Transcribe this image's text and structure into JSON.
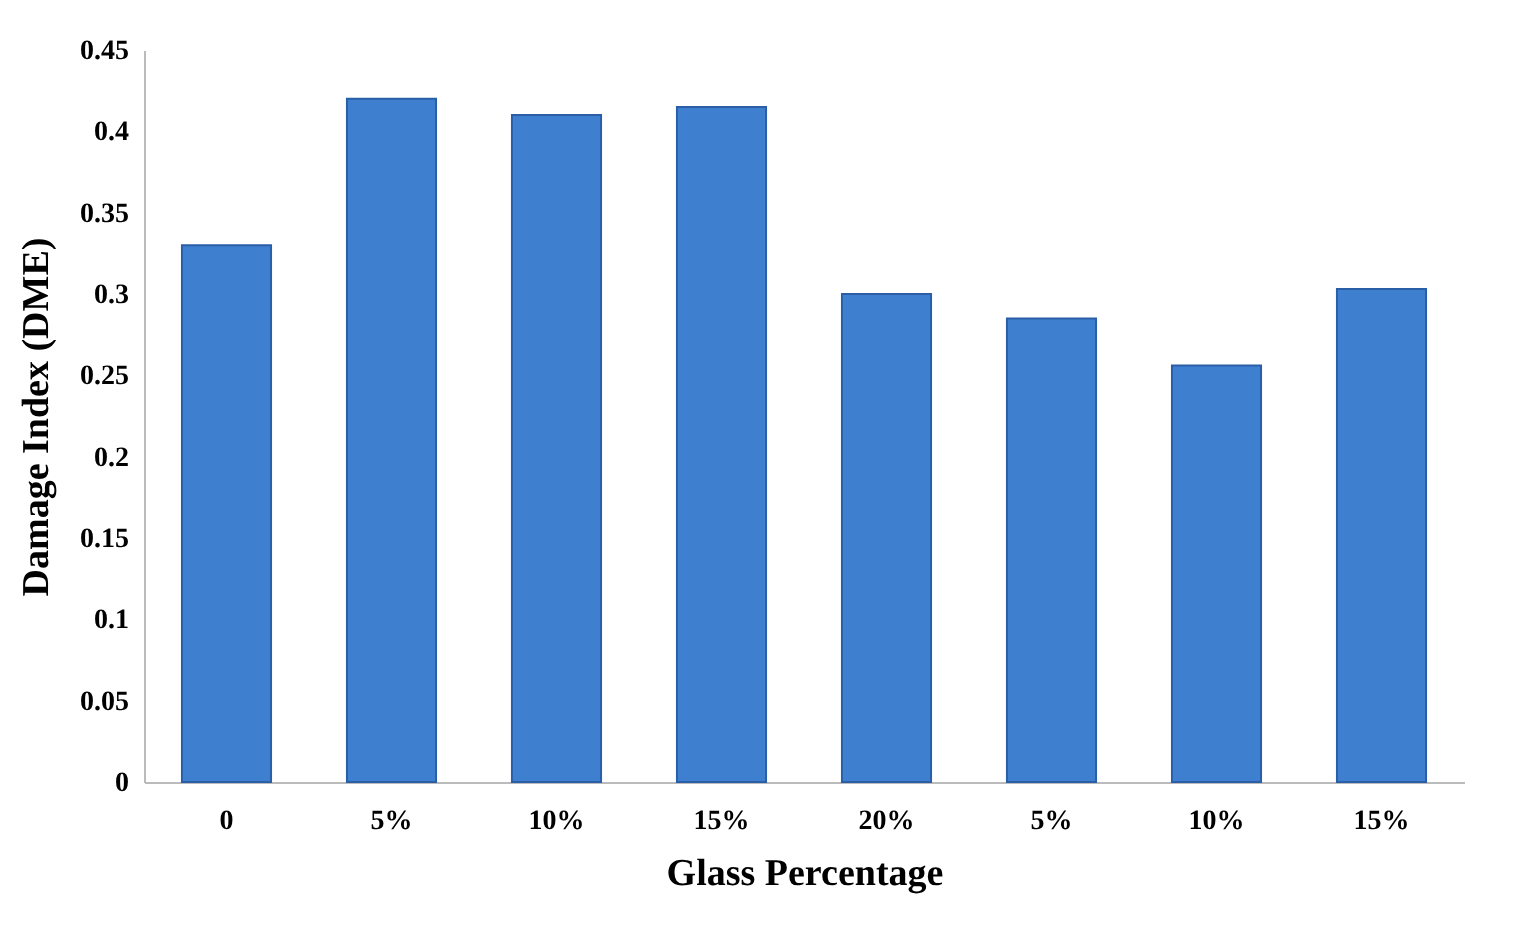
{
  "chart_data": {
    "type": "bar",
    "xlabel": "Glass Percentage",
    "ylabel": "Damage Index (DME)",
    "categories": [
      "0",
      "5%",
      "10%",
      "15%",
      "20%",
      "5%",
      "10%",
      "15%"
    ],
    "values": [
      0.33,
      0.42,
      0.41,
      0.415,
      0.3,
      0.285,
      0.256,
      0.303
    ],
    "color": "#3f7fd0",
    "ylim": [
      0,
      0.45
    ],
    "yticks": [
      0,
      0.05,
      0.1,
      0.15,
      0.2,
      0.25,
      0.3,
      0.35,
      0.4,
      0.45
    ],
    "grid": false
  }
}
